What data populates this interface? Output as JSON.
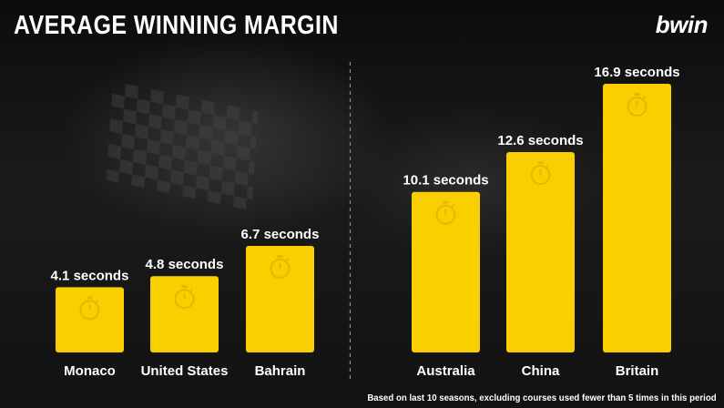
{
  "title": "AVERAGE WINNING MARGIN",
  "brand": "bwin",
  "footnote": "Based on last 10 seasons, excluding courses used fewer than 5 times in this period",
  "colors": {
    "bar": "#f9cf00",
    "stopwatch": "#e3b800",
    "text": "#ffffff",
    "divider": "#8a8a8a"
  },
  "chart_data": {
    "type": "bar",
    "categories": [
      "Monaco",
      "United States",
      "Bahrain",
      "Australia",
      "China",
      "Britain"
    ],
    "values": [
      4.1,
      4.8,
      6.7,
      10.1,
      12.6,
      16.9
    ],
    "value_labels": [
      "4.1 seconds",
      "4.8 seconds",
      "6.7 seconds",
      "10.1 seconds",
      "12.6 seconds",
      "16.9 seconds"
    ],
    "ylim": [
      0,
      16.9
    ],
    "groups": [
      [
        "Monaco",
        "United States",
        "Bahrain"
      ],
      [
        "Australia",
        "China",
        "Britain"
      ]
    ],
    "grid": false,
    "icon": "stopwatch-icon"
  }
}
